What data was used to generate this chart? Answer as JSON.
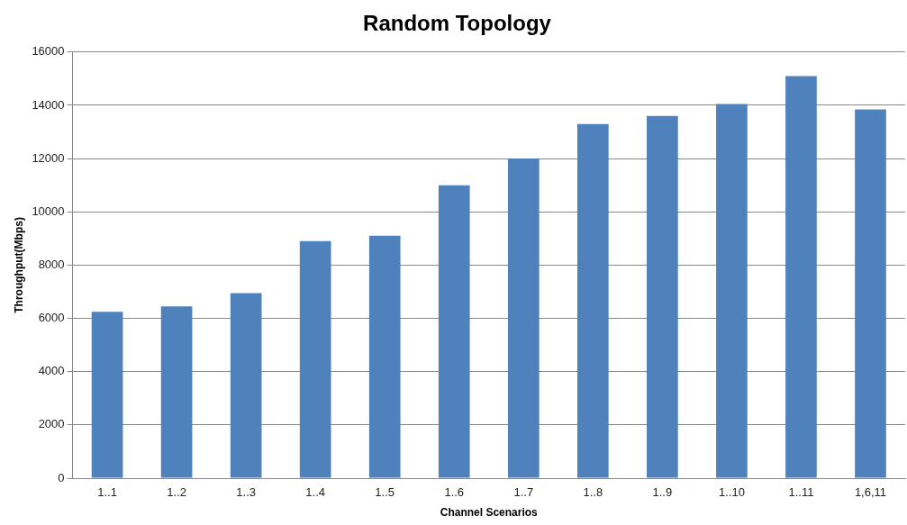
{
  "chart_data": {
    "type": "bar",
    "title": "Random Topology",
    "xlabel": "Channel Scenarios",
    "ylabel": "Throughput(Mbps)",
    "categories": [
      "1..1",
      "1..2",
      "1..3",
      "1..4",
      "1..5",
      "1..6",
      "1..7",
      "1..8",
      "1..9",
      "1..10",
      "1..11",
      "1,6,11"
    ],
    "values": [
      6250,
      6450,
      6950,
      8900,
      9100,
      11000,
      12000,
      13300,
      13600,
      14050,
      15100,
      13850
    ],
    "color": "#4f81bd",
    "ylim": [
      0,
      16000
    ],
    "yticks": [
      0,
      2000,
      4000,
      6000,
      8000,
      10000,
      12000,
      14000,
      16000
    ],
    "grid": "y",
    "legend": false
  }
}
